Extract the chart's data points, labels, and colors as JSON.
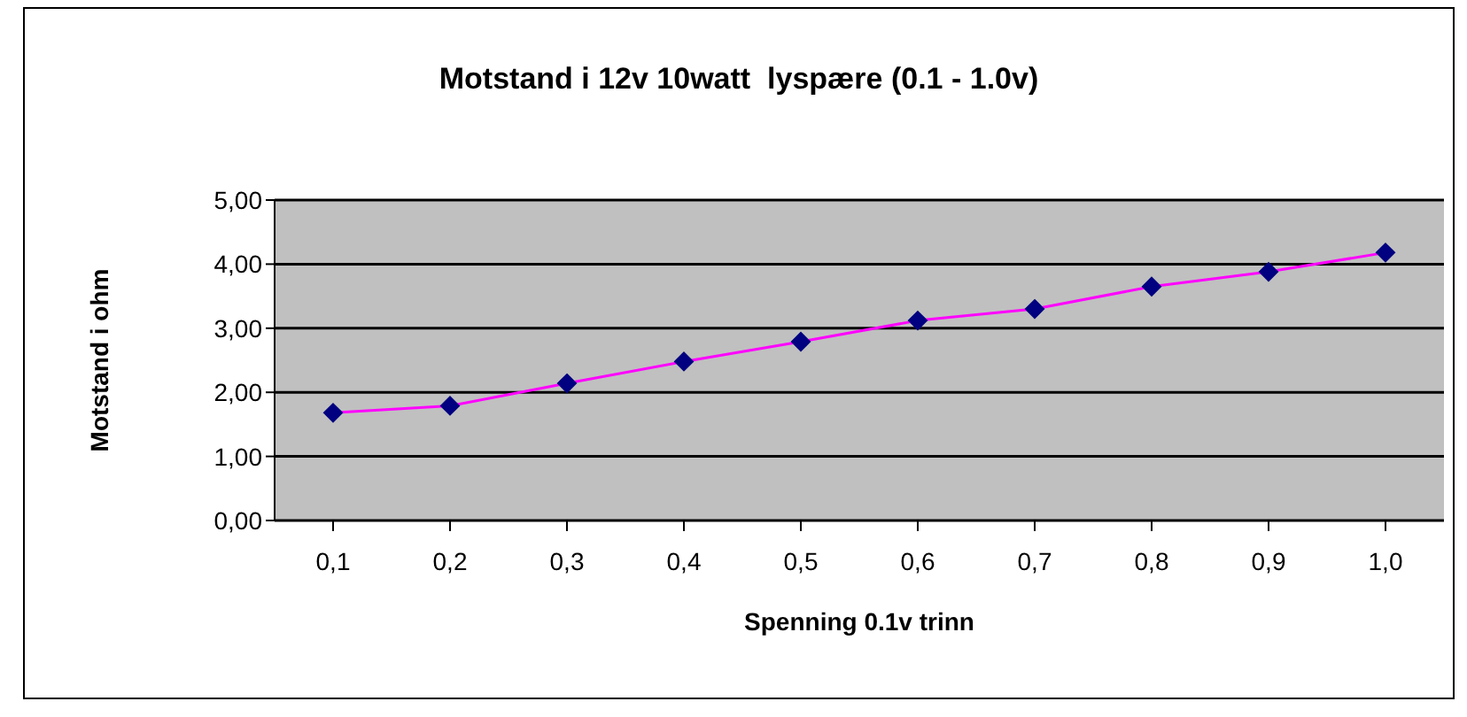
{
  "chart_data": {
    "type": "line",
    "title": "Motstand i 12v 10watt  lyspære (0.1 - 1.0v)",
    "xlabel": "Spenning 0.1v trinn",
    "ylabel": "Motstand i ohm",
    "categories": [
      "0,1",
      "0,2",
      "0,3",
      "0,4",
      "0,5",
      "0,6",
      "0,7",
      "0,8",
      "0,9",
      "1,0"
    ],
    "series": [
      {
        "color": "#ff00ff",
        "values": [
          1.68,
          1.79,
          2.14,
          2.48,
          2.79,
          3.12,
          3.3,
          3.65,
          3.88,
          4.18
        ]
      }
    ],
    "ylim": [
      0,
      5
    ],
    "yticks": [
      {
        "value": 0,
        "label": "0,00"
      },
      {
        "value": 1,
        "label": "1,00"
      },
      {
        "value": 2,
        "label": "2,00"
      },
      {
        "value": 3,
        "label": "3,00"
      },
      {
        "value": 4,
        "label": "4,00"
      },
      {
        "value": 5,
        "label": "5,00"
      }
    ],
    "grid": "y",
    "marker": "diamond",
    "line_style": "solid"
  }
}
